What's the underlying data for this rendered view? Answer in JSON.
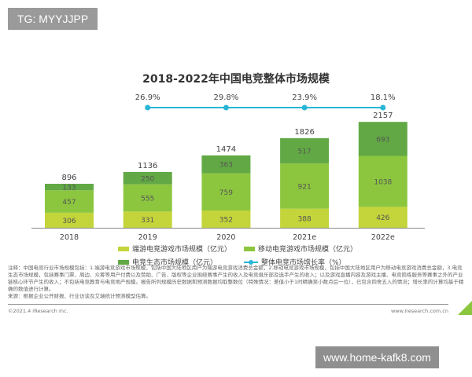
{
  "watermark_top": "TG: MYYJJPP",
  "watermark_bottom": "www.home-kafk8.com",
  "chart_data": {
    "type": "bar",
    "stacked": true,
    "title": "2018-2022年中国电竞整体市场规模",
    "categories": [
      "2018",
      "2019",
      "2020",
      "2021e",
      "2022e"
    ],
    "series": [
      {
        "name": "端游电竞游戏市场规模（亿元）",
        "values": [
          306,
          331,
          352,
          388,
          426
        ],
        "color": "#c3d53a"
      },
      {
        "name": "移动电竞游戏市场规模（亿元）",
        "values": [
          457,
          555,
          759,
          921,
          1038
        ],
        "color": "#8cc63f"
      },
      {
        "name": "电竞生态市场规模（亿元）",
        "values": [
          133,
          250,
          363,
          517,
          693
        ],
        "color": "#62a945"
      }
    ],
    "totals": [
      896,
      1136,
      1474,
      1826,
      2157
    ],
    "line_series": {
      "name": "整体电竞市场增长率（%）",
      "categories": [
        "2019",
        "2020",
        "2021e",
        "2022e"
      ],
      "values": [
        "26.9%",
        "29.8%",
        "23.9%",
        "18.1%"
      ],
      "color": "#29b6d6"
    },
    "legend_placement": "bottom",
    "grid": false
  },
  "notes": "注释：中国电竞行业市场规模包括：1.端游电竞游戏市场规模，包括中国大陆地区用户为端游电竞游戏消费总金额，2.移动电竞游戏市场规模，包括中国大陆地区用户为移动电竞游戏消费总金额，3.电竞生态市场规模，包括赛事门票、周边、众筹等用户付费以及赞助、广告、版权等企业围绕赛事产生的收入及电竞俱乐部及选手产生的收入；以及游戏直播内容及游戏主播、电竞陪练服务等赛事之外的产业链核心环节产生的收入；不包括电竞教育与电竞地产规模。报告所列规模历史数据和预测数据均取整数位（特殊情况：差值小于1时精确至小数点后一位），已包含四舍五入的情况；增长率的计算均基于精确的数值进行计算。",
  "source": "来源：根据企业公开财报、行业访谈及艾瑞统计预测模型估算。",
  "copyright": "©2021.4 iResearch Inc.",
  "website": "www.iresearch.com.cn"
}
